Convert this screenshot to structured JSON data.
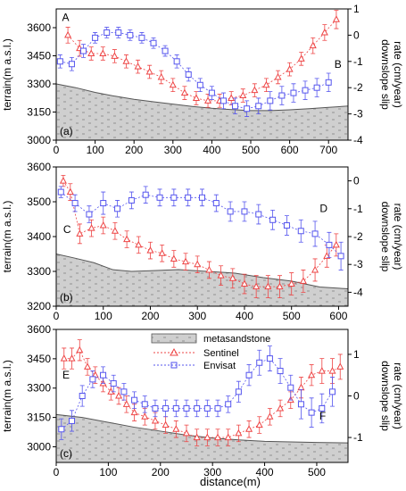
{
  "colors": {
    "sentinel": "#ee4444",
    "envisat": "#5555ee",
    "terrain_fill": "#cfcfcf",
    "terrain_line": "#555555"
  },
  "legend": {
    "terrain": "metasandstone",
    "sentinel": "Sentinel",
    "envisat": "Envisat"
  },
  "xlabel": "distance(m)",
  "chart_data": [
    {
      "type": "line",
      "panel_label": "(a)",
      "ylabel_left": "terrain(m a.s.l.)",
      "ylabel_right_1": "downslope slip",
      "ylabel_right_2": "rate (cm/year)",
      "xlim": [
        0,
        750
      ],
      "xticks": [
        "0",
        "100",
        "200",
        "300",
        "400",
        "500",
        "600",
        "700"
      ],
      "ylim_left": [
        3000,
        3700
      ],
      "yticks_left": [
        "3000",
        "3150",
        "3300",
        "3450",
        "3600"
      ],
      "ylim_right": [
        -4,
        1
      ],
      "yticks_right": [
        "-4",
        "-3",
        "-2",
        "-1",
        "0",
        "1"
      ],
      "annotations": [
        {
          "text": "A",
          "x": 15,
          "y": 3635
        },
        {
          "text": "B",
          "x": 715,
          "y": 3385
        }
      ],
      "terrain": {
        "x": [
          0,
          50,
          100,
          150,
          200,
          250,
          300,
          350,
          400,
          450,
          500,
          550,
          600,
          650,
          700,
          750
        ],
        "y": [
          3300,
          3280,
          3255,
          3235,
          3218,
          3205,
          3192,
          3180,
          3170,
          3163,
          3158,
          3158,
          3162,
          3168,
          3175,
          3182
        ]
      },
      "series": [
        {
          "name": "Sentinel",
          "x": [
            30,
            60,
            90,
            120,
            150,
            180,
            210,
            240,
            270,
            300,
            330,
            360,
            390,
            420,
            450,
            480,
            510,
            540,
            570,
            600,
            630,
            660,
            690,
            720
          ],
          "y": [
            0,
            -0.5,
            -0.7,
            -0.7,
            -0.8,
            -1.0,
            -1.2,
            -1.4,
            -1.6,
            -1.9,
            -2.2,
            -2.4,
            -2.5,
            -2.5,
            -2.4,
            -2.3,
            -2.1,
            -1.9,
            -1.6,
            -1.3,
            -0.9,
            -0.4,
            0.1,
            0.6
          ],
          "err": [
            0.3,
            0.3,
            0.25,
            0.25,
            0.25,
            0.25,
            0.25,
            0.25,
            0.25,
            0.25,
            0.25,
            0.25,
            0.25,
            0.25,
            0.25,
            0.25,
            0.25,
            0.25,
            0.25,
            0.25,
            0.25,
            0.3,
            0.3,
            0.35
          ]
        },
        {
          "name": "Envisat",
          "x": [
            10,
            40,
            70,
            100,
            130,
            160,
            190,
            220,
            250,
            280,
            310,
            340,
            370,
            400,
            430,
            460,
            490,
            520,
            550,
            580,
            610,
            640,
            670,
            700
          ],
          "y": [
            -1.0,
            -1.1,
            -0.6,
            -0.1,
            0.1,
            0.1,
            0.0,
            -0.1,
            -0.3,
            -0.6,
            -1.0,
            -1.5,
            -1.9,
            -2.2,
            -2.5,
            -2.7,
            -2.8,
            -2.7,
            -2.5,
            -2.3,
            -2.2,
            -2.1,
            -2.0,
            -1.8
          ],
          "err": [
            0.25,
            0.25,
            0.25,
            0.2,
            0.2,
            0.2,
            0.2,
            0.2,
            0.2,
            0.2,
            0.25,
            0.25,
            0.25,
            0.25,
            0.3,
            0.3,
            0.3,
            0.3,
            0.35,
            0.35,
            0.35,
            0.35,
            0.35,
            0.35
          ]
        }
      ]
    },
    {
      "type": "line",
      "panel_label": "(b)",
      "ylabel_left": "terrain(m a.s.l.)",
      "ylabel_right_1": "downslope slip",
      "ylabel_right_2": "rate (cm/year)",
      "xlim": [
        0,
        620
      ],
      "xticks": [
        "0",
        "100",
        "200",
        "300",
        "400",
        "500",
        "600"
      ],
      "ylim_left": [
        3200,
        3600
      ],
      "yticks_left": [
        "3200",
        "3300",
        "3400",
        "3500",
        "3600"
      ],
      "ylim_right": [
        -4.5,
        0.5
      ],
      "yticks_right": [
        "-4",
        "-3",
        "-2",
        "-1",
        "0"
      ],
      "annotations": [
        {
          "text": "C",
          "x": 15,
          "y": 3410
        },
        {
          "text": "D",
          "x": 560,
          "y": 3470
        }
      ],
      "terrain": {
        "x": [
          0,
          40,
          80,
          120,
          160,
          200,
          260,
          320,
          380,
          440,
          500,
          560,
          620
        ],
        "y": [
          3350,
          3338,
          3325,
          3305,
          3300,
          3302,
          3305,
          3300,
          3295,
          3282,
          3272,
          3255,
          3250
        ]
      },
      "series": [
        {
          "name": "Sentinel",
          "x": [
            15,
            30,
            50,
            75,
            100,
            125,
            150,
            175,
            200,
            225,
            250,
            275,
            300,
            325,
            350,
            375,
            400,
            425,
            450,
            475,
            500,
            525,
            550,
            575,
            595
          ],
          "y": [
            0,
            -0.4,
            -1.9,
            -1.7,
            -1.6,
            -1.8,
            -2.1,
            -2.3,
            -2.5,
            -2.6,
            -2.8,
            -2.9,
            -3.0,
            -3.2,
            -3.4,
            -3.5,
            -3.7,
            -3.8,
            -3.8,
            -3.8,
            -3.7,
            -3.6,
            -3.2,
            -2.7,
            -2.3
          ],
          "err": [
            0.2,
            0.3,
            0.35,
            0.3,
            0.3,
            0.3,
            0.3,
            0.3,
            0.3,
            0.3,
            0.3,
            0.3,
            0.3,
            0.3,
            0.35,
            0.35,
            0.35,
            0.4,
            0.4,
            0.4,
            0.4,
            0.4,
            0.4,
            0.4,
            0.4
          ]
        },
        {
          "name": "Envisat",
          "x": [
            10,
            40,
            70,
            100,
            130,
            160,
            190,
            220,
            250,
            280,
            310,
            340,
            370,
            400,
            430,
            460,
            490,
            520,
            550,
            580,
            605
          ],
          "y": [
            -0.4,
            -0.8,
            -1.2,
            -0.8,
            -1.0,
            -0.7,
            -0.5,
            -0.6,
            -0.6,
            -0.6,
            -0.6,
            -0.8,
            -1.1,
            -1.1,
            -1.2,
            -1.4,
            -1.6,
            -1.8,
            -1.9,
            -2.3,
            -2.7
          ],
          "err": [
            0.2,
            0.3,
            0.3,
            0.4,
            0.3,
            0.3,
            0.3,
            0.3,
            0.3,
            0.3,
            0.3,
            0.3,
            0.35,
            0.35,
            0.35,
            0.35,
            0.35,
            0.4,
            0.45,
            0.45,
            0.5
          ]
        }
      ]
    },
    {
      "type": "line",
      "panel_label": "(c)",
      "ylabel_left": "terrain(m a.s.l.)",
      "ylabel_right_1": "downslope slip",
      "ylabel_right_2": "rate (cm/year)",
      "xlim": [
        0,
        560
      ],
      "xticks": [
        "0",
        "100",
        "200",
        "300",
        "400",
        "500"
      ],
      "ylim_left": [
        2920,
        3600
      ],
      "yticks_left": [
        "3000",
        "3150",
        "3300",
        "3450",
        "3600"
      ],
      "ylim_right": [
        -1.6,
        1.6
      ],
      "yticks_right": [
        "-1",
        "0",
        "1"
      ],
      "annotations": [
        {
          "text": "E",
          "x": 12,
          "y": 3350
        },
        {
          "text": "F",
          "x": 505,
          "y": 3140
        }
      ],
      "terrain": {
        "x": [
          0,
          50,
          100,
          150,
          200,
          250,
          300,
          350,
          400,
          450,
          500,
          560
        ],
        "y": [
          3165,
          3150,
          3125,
          3100,
          3080,
          3060,
          3045,
          3035,
          3028,
          3025,
          3022,
          3020
        ]
      },
      "series": [
        {
          "name": "Sentinel",
          "x": [
            15,
            30,
            45,
            60,
            75,
            90,
            105,
            120,
            135,
            150,
            170,
            190,
            210,
            230,
            250,
            270,
            290,
            310,
            330,
            350,
            370,
            390,
            410,
            430,
            450,
            470,
            490,
            510,
            530,
            545
          ],
          "y": [
            0.9,
            0.9,
            1.1,
            0.7,
            0.5,
            0.3,
            0.1,
            0.0,
            -0.2,
            -0.4,
            -0.5,
            -0.6,
            -0.7,
            -0.8,
            -0.9,
            -1.0,
            -1.0,
            -1.0,
            -1.0,
            -0.9,
            -0.8,
            -0.7,
            -0.5,
            -0.3,
            -0.1,
            0.2,
            0.5,
            0.6,
            0.6,
            0.7
          ],
          "err": [
            0.25,
            0.25,
            0.25,
            0.2,
            0.2,
            0.2,
            0.2,
            0.2,
            0.2,
            0.2,
            0.2,
            0.2,
            0.2,
            0.2,
            0.2,
            0.2,
            0.2,
            0.2,
            0.2,
            0.2,
            0.2,
            0.2,
            0.2,
            0.2,
            0.2,
            0.25,
            0.25,
            0.3,
            0.3,
            0.3
          ]
        },
        {
          "name": "Envisat",
          "x": [
            10,
            30,
            50,
            70,
            90,
            110,
            130,
            150,
            170,
            190,
            210,
            230,
            250,
            270,
            290,
            310,
            330,
            350,
            370,
            390,
            410,
            430,
            450,
            470,
            490,
            510,
            530
          ],
          "y": [
            -0.8,
            -0.6,
            0.0,
            0.4,
            0.5,
            0.3,
            0.1,
            -0.1,
            -0.2,
            -0.3,
            -0.3,
            -0.3,
            -0.3,
            -0.3,
            -0.3,
            -0.3,
            -0.2,
            0.1,
            0.5,
            0.8,
            0.9,
            0.6,
            0.2,
            -0.2,
            -0.4,
            -0.3,
            0.1
          ],
          "err": [
            0.25,
            0.25,
            0.25,
            0.2,
            0.2,
            0.2,
            0.2,
            0.2,
            0.2,
            0.2,
            0.2,
            0.2,
            0.2,
            0.2,
            0.2,
            0.2,
            0.2,
            0.25,
            0.25,
            0.3,
            0.3,
            0.3,
            0.3,
            0.35,
            0.35,
            0.35,
            0.35
          ]
        }
      ]
    }
  ]
}
